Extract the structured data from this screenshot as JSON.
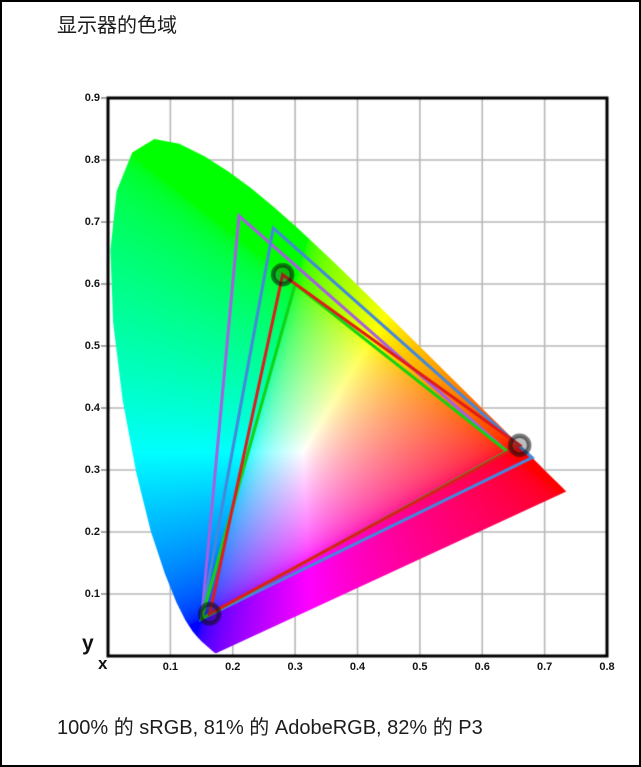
{
  "page": {
    "title": "显示器的色域",
    "caption": "100% 的 sRGB, 81% 的 AdobeRGB, 82% 的 P3"
  },
  "chart_data": {
    "type": "scatter",
    "subtype": "cie-1931-chromaticity-diagram",
    "title": "显示器的色域",
    "xlabel": "x",
    "ylabel": "y",
    "xlim": [
      0,
      0.8
    ],
    "ylim": [
      0,
      0.9
    ],
    "x_ticks": [
      "0.1",
      "0.2",
      "0.3",
      "0.4",
      "0.5",
      "0.6",
      "0.7",
      "0.8"
    ],
    "y_ticks": [
      "0.1",
      "0.2",
      "0.3",
      "0.4",
      "0.5",
      "0.6",
      "0.7",
      "0.8",
      "0.9"
    ],
    "grid": true,
    "grid_color": "#b8b8b8",
    "border_color": "#000000",
    "legend": "none",
    "coverage_summary": {
      "sRGB": "100%",
      "AdobeRGB": "81%",
      "P3": "82%"
    },
    "series": [
      {
        "name": "AdobeRGB",
        "color": "#a55fe3",
        "coverage": "81%",
        "markers": false,
        "vertices": [
          [
            0.64,
            0.33
          ],
          [
            0.21,
            0.71
          ],
          [
            0.15,
            0.06
          ]
        ]
      },
      {
        "name": "P3",
        "color": "#4687dc",
        "coverage": "82%",
        "markers": false,
        "vertices": [
          [
            0.68,
            0.32
          ],
          [
            0.265,
            0.69
          ],
          [
            0.15,
            0.06
          ]
        ]
      },
      {
        "name": "sRGB",
        "color": "#12d312",
        "coverage": "100%",
        "markers": false,
        "vertices": [
          [
            0.64,
            0.33
          ],
          [
            0.3,
            0.6
          ],
          [
            0.15,
            0.06
          ]
        ]
      },
      {
        "name": "display-gamut",
        "color": "#e11b1b",
        "markers": true,
        "vertices": [
          [
            0.66,
            0.34
          ],
          [
            0.28,
            0.615
          ],
          [
            0.163,
            0.068
          ]
        ]
      }
    ],
    "spectral_locus": [
      [
        0.1741,
        0.005
      ],
      [
        0.174,
        0.005
      ],
      [
        0.1738,
        0.0049
      ],
      [
        0.1736,
        0.0049
      ],
      [
        0.1733,
        0.0048
      ],
      [
        0.173,
        0.0048
      ],
      [
        0.1726,
        0.0048
      ],
      [
        0.1721,
        0.0048
      ],
      [
        0.1714,
        0.0051
      ],
      [
        0.1703,
        0.0058
      ],
      [
        0.1689,
        0.0069
      ],
      [
        0.1669,
        0.0086
      ],
      [
        0.1644,
        0.0109
      ],
      [
        0.1611,
        0.0138
      ],
      [
        0.1566,
        0.0177
      ],
      [
        0.151,
        0.0227
      ],
      [
        0.144,
        0.0297
      ],
      [
        0.1355,
        0.0399
      ],
      [
        0.1241,
        0.0578
      ],
      [
        0.1096,
        0.0868
      ],
      [
        0.0913,
        0.1327
      ],
      [
        0.0687,
        0.2007
      ],
      [
        0.0454,
        0.295
      ],
      [
        0.0235,
        0.4127
      ],
      [
        0.0082,
        0.5384
      ],
      [
        0.0039,
        0.6548
      ],
      [
        0.0139,
        0.7502
      ],
      [
        0.0389,
        0.812
      ],
      [
        0.0743,
        0.8338
      ],
      [
        0.1142,
        0.8262
      ],
      [
        0.1547,
        0.8059
      ],
      [
        0.1929,
        0.7816
      ],
      [
        0.2296,
        0.7543
      ],
      [
        0.2658,
        0.7243
      ],
      [
        0.3016,
        0.6923
      ],
      [
        0.3373,
        0.6589
      ],
      [
        0.3731,
        0.6245
      ],
      [
        0.4087,
        0.5896
      ],
      [
        0.4441,
        0.5547
      ],
      [
        0.4788,
        0.5202
      ],
      [
        0.5125,
        0.4866
      ],
      [
        0.5448,
        0.4544
      ],
      [
        0.5752,
        0.4242
      ],
      [
        0.6029,
        0.3965
      ],
      [
        0.627,
        0.3725
      ],
      [
        0.6482,
        0.3514
      ],
      [
        0.6658,
        0.334
      ],
      [
        0.6801,
        0.3197
      ],
      [
        0.6915,
        0.3083
      ],
      [
        0.7006,
        0.2993
      ],
      [
        0.7079,
        0.292
      ],
      [
        0.714,
        0.2859
      ],
      [
        0.719,
        0.2809
      ],
      [
        0.726,
        0.274
      ],
      [
        0.73,
        0.27
      ],
      [
        0.7334,
        0.2666
      ],
      [
        0.7347,
        0.2653
      ]
    ]
  }
}
